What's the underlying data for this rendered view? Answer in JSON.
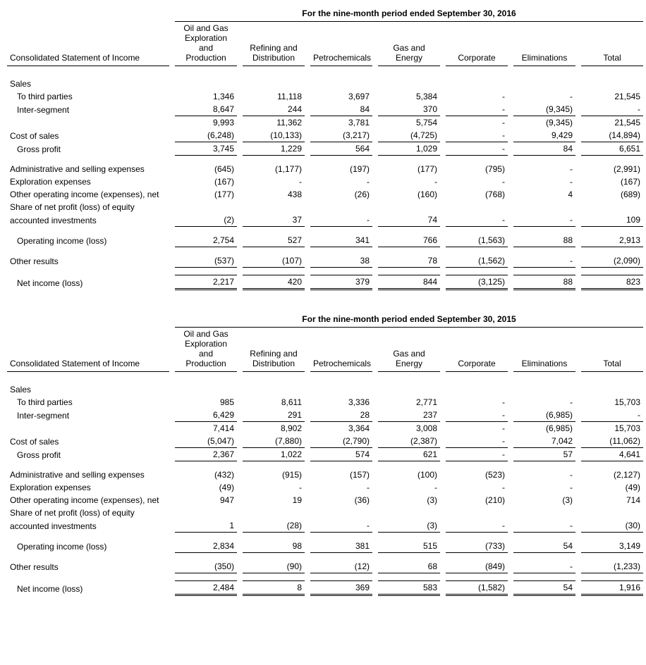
{
  "tables": [
    {
      "period_title": "For the nine-month period ended September 30, 2016",
      "row_label": "Consolidated Statement of Income",
      "columns": [
        "Oil and Gas Exploration and Production",
        "Refining and Distribution",
        "Petrochemicals",
        "Gas and Energy",
        "Corporate",
        "Eliminations",
        "Total"
      ],
      "rows": [
        {
          "type": "section",
          "label": "Sales"
        },
        {
          "type": "data",
          "label": "To third parties",
          "indent": 1,
          "values": [
            "1,346",
            "11,118",
            "3,697",
            "5,384",
            "-",
            "-",
            "21,545"
          ]
        },
        {
          "type": "data",
          "label": "Inter-segment",
          "indent": 1,
          "values": [
            "8,647",
            "244",
            "84",
            "370",
            "-",
            "(9,345)",
            "-"
          ],
          "underline": true
        },
        {
          "type": "data",
          "label": "",
          "indent": 0,
          "values": [
            "9,993",
            "11,362",
            "3,781",
            "5,754",
            "-",
            "(9,345)",
            "21,545"
          ]
        },
        {
          "type": "data",
          "label": "Cost of sales",
          "indent": 0,
          "values": [
            "(6,248)",
            "(10,133)",
            "(3,217)",
            "(4,725)",
            "-",
            "9,429",
            "(14,894)"
          ],
          "underline": true
        },
        {
          "type": "data",
          "label": "Gross profit",
          "indent": 1,
          "values": [
            "3,745",
            "1,229",
            "564",
            "1,029",
            "-",
            "84",
            "6,651"
          ],
          "underline_after": true
        },
        {
          "type": "spacer"
        },
        {
          "type": "data",
          "label": "Administrative and selling expenses",
          "indent": 0,
          "values": [
            "(645)",
            "(1,177)",
            "(197)",
            "(177)",
            "(795)",
            "-",
            "(2,991)"
          ]
        },
        {
          "type": "data",
          "label": "Exploration expenses",
          "indent": 0,
          "values": [
            "(167)",
            "-",
            "-",
            "-",
            "-",
            "-",
            "(167)"
          ]
        },
        {
          "type": "data",
          "label": "Other operating income (expenses), net",
          "indent": 0,
          "values": [
            "(177)",
            "438",
            "(26)",
            "(160)",
            "(768)",
            "4",
            "(689)"
          ]
        },
        {
          "type": "multiline_data",
          "label1": "Share of net profit (loss) of equity",
          "label2": "accounted investments",
          "indent": 0,
          "values": [
            "(2)",
            "37",
            "-",
            "74",
            "-",
            "-",
            "109"
          ],
          "underline_after": true
        },
        {
          "type": "spacer"
        },
        {
          "type": "data",
          "label": "Operating income (loss)",
          "indent": 1,
          "values": [
            "2,754",
            "527",
            "341",
            "766",
            "(1,563)",
            "88",
            "2,913"
          ],
          "underline_after": true
        },
        {
          "type": "spacer"
        },
        {
          "type": "data",
          "label": "Other results",
          "indent": 0,
          "values": [
            "(537)",
            "(107)",
            "38",
            "78",
            "(1,562)",
            "-",
            "(2,090)"
          ],
          "underline_after": true
        },
        {
          "type": "spacer"
        },
        {
          "type": "data",
          "label": "Net income (loss)",
          "indent": 1,
          "values": [
            "2,217",
            "420",
            "379",
            "844",
            "(3,125)",
            "88",
            "823"
          ],
          "double_underline": true
        }
      ]
    },
    {
      "period_title": "For the nine-month period ended September 30, 2015",
      "row_label": "Consolidated Statement of Income",
      "columns": [
        "Oil and Gas Exploration and Production",
        "Refining and Distribution",
        "Petrochemicals",
        "Gas and Energy",
        "Corporate",
        "Eliminations",
        "Total"
      ],
      "rows": [
        {
          "type": "section",
          "label": "Sales"
        },
        {
          "type": "data",
          "label": "To third parties",
          "indent": 1,
          "values": [
            "985",
            "8,611",
            "3,336",
            "2,771",
            "-",
            "-",
            "15,703"
          ]
        },
        {
          "type": "data",
          "label": "Inter-segment",
          "indent": 1,
          "values": [
            "6,429",
            "291",
            "28",
            "237",
            "-",
            "(6,985)",
            "-"
          ],
          "underline": true
        },
        {
          "type": "data",
          "label": "",
          "indent": 0,
          "values": [
            "7,414",
            "8,902",
            "3,364",
            "3,008",
            "-",
            "(6,985)",
            "15,703"
          ]
        },
        {
          "type": "data",
          "label": "Cost of sales",
          "indent": 0,
          "values": [
            "(5,047)",
            "(7,880)",
            "(2,790)",
            "(2,387)",
            "-",
            "7,042",
            "(11,062)"
          ],
          "underline": true
        },
        {
          "type": "data",
          "label": "Gross profit",
          "indent": 1,
          "values": [
            "2,367",
            "1,022",
            "574",
            "621",
            "-",
            "57",
            "4,641"
          ],
          "underline_after": true
        },
        {
          "type": "spacer"
        },
        {
          "type": "data",
          "label": "Administrative and selling expenses",
          "indent": 0,
          "values": [
            "(432)",
            "(915)",
            "(157)",
            "(100)",
            "(523)",
            "-",
            "(2,127)"
          ]
        },
        {
          "type": "data",
          "label": "Exploration expenses",
          "indent": 0,
          "values": [
            "(49)",
            "-",
            "-",
            "-",
            "-",
            "-",
            "(49)"
          ]
        },
        {
          "type": "data",
          "label": "Other operating income (expenses), net",
          "indent": 0,
          "values": [
            "947",
            "19",
            "(36)",
            "(3)",
            "(210)",
            "(3)",
            "714"
          ]
        },
        {
          "type": "multiline_data",
          "label1": "Share of net profit (loss) of equity",
          "label2": "accounted investments",
          "indent": 0,
          "values": [
            "1",
            "(28)",
            "-",
            "(3)",
            "-",
            "-",
            "(30)"
          ],
          "underline_after": true
        },
        {
          "type": "spacer"
        },
        {
          "type": "data",
          "label": "Operating income (loss)",
          "indent": 1,
          "values": [
            "2,834",
            "98",
            "381",
            "515",
            "(733)",
            "54",
            "3,149"
          ],
          "underline_after": true
        },
        {
          "type": "spacer"
        },
        {
          "type": "data",
          "label": "Other results",
          "indent": 0,
          "values": [
            "(350)",
            "(90)",
            "(12)",
            "68",
            "(849)",
            "-",
            "(1,233)"
          ],
          "underline_after": true
        },
        {
          "type": "spacer"
        },
        {
          "type": "data",
          "label": "Net income (loss)",
          "indent": 1,
          "values": [
            "2,484",
            "8",
            "369",
            "583",
            "(1,582)",
            "54",
            "1,916"
          ],
          "double_underline": true
        }
      ]
    }
  ]
}
